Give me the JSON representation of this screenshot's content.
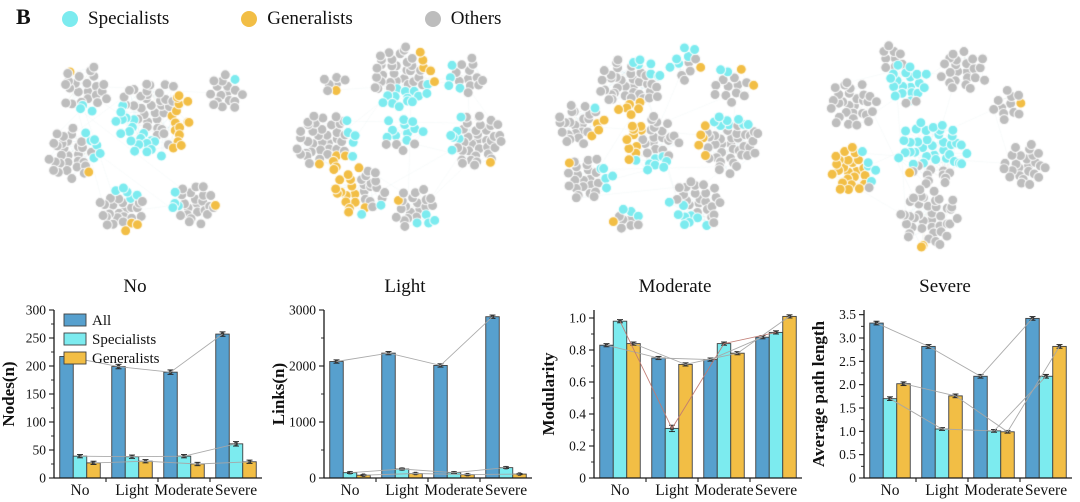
{
  "panel_label": "B",
  "colors": {
    "specialist": "#7CEBEF",
    "generalist": "#F2BE45",
    "other": "#BDBDBD",
    "all_bar": "#57A0CE",
    "axis": "#1a1a1a",
    "trend_line": "#a6a6a6",
    "trend_line_red": "#c07a72",
    "node_edge_cool": "rgba(150,205,210,0.14)",
    "node_edge_warm": "rgba(215,180,110,0.13)"
  },
  "legend": [
    {
      "label": "Specialists",
      "color": "#7CEBEF"
    },
    {
      "label": "Generalists",
      "color": "#F2BE45"
    },
    {
      "label": "Others",
      "color": "#BDBDBD"
    }
  ],
  "networks": {
    "panels": [
      {
        "label": "No",
        "seed": 42,
        "clusters": [
          [
            0.31,
            0.24,
            0.105,
            26,
            3,
            0,
            1,
            1,
            -0.3,
            -1
          ],
          [
            0.57,
            0.36,
            0.165,
            68,
            20,
            -0.5,
            0.5,
            15,
            0.95,
            0.1
          ],
          [
            0.84,
            0.25,
            0.082,
            17,
            1,
            0.5,
            -1,
            0,
            0,
            0
          ],
          [
            0.27,
            0.5,
            0.115,
            36,
            6,
            0.9,
            -0.3,
            1,
            0.3,
            0.4
          ],
          [
            0.45,
            0.73,
            0.1,
            30,
            5,
            0.2,
            -1,
            3,
            0.1,
            0.7
          ],
          [
            0.72,
            0.71,
            0.095,
            27,
            4,
            -1,
            -0.2,
            1,
            0.8,
            0.2
          ]
        ]
      },
      {
        "label": "Light",
        "seed": 77,
        "clusters": [
          [
            0.49,
            0.19,
            0.135,
            50,
            14,
            0.1,
            1,
            5,
            1,
            -0.3
          ],
          [
            0.23,
            0.21,
            0.05,
            7,
            0,
            0,
            0,
            1,
            0.3,
            1
          ],
          [
            0.73,
            0.19,
            0.085,
            16,
            4,
            -0.7,
            0.2,
            0,
            0,
            0
          ],
          [
            0.2,
            0.45,
            0.13,
            46,
            5,
            1,
            -0.2,
            6,
            0.4,
            1
          ],
          [
            0.49,
            0.42,
            0.085,
            15,
            11,
            0,
            -1,
            0,
            0,
            0
          ],
          [
            0.77,
            0.45,
            0.12,
            42,
            6,
            -1,
            -0.2,
            1,
            0.3,
            1
          ],
          [
            0.33,
            0.66,
            0.11,
            32,
            2,
            0.3,
            1,
            15,
            -0.6,
            0.1
          ],
          [
            0.54,
            0.73,
            0.095,
            24,
            4,
            0.2,
            0.3,
            1,
            -0.8,
            -0.5
          ]
        ]
      },
      {
        "label": "Moderate",
        "seed": 113,
        "clusters": [
          [
            0.33,
            0.22,
            0.13,
            48,
            7,
            0.5,
            -1,
            6,
            0,
            1
          ],
          [
            0.54,
            0.13,
            0.075,
            12,
            6,
            -0.5,
            -0.5,
            1,
            0.8,
            -0.2
          ],
          [
            0.72,
            0.22,
            0.085,
            15,
            2,
            -0.4,
            -0.8,
            2,
            0.3,
            -0.4
          ],
          [
            0.14,
            0.38,
            0.1,
            28,
            1,
            0.5,
            -0.5,
            4,
            0.6,
            0.3
          ],
          [
            0.41,
            0.46,
            0.12,
            38,
            8,
            0.1,
            1,
            10,
            -0.7,
            -0.1
          ],
          [
            0.7,
            0.46,
            0.13,
            48,
            8,
            0,
            -1,
            5,
            -0.9,
            0
          ],
          [
            0.17,
            0.6,
            0.1,
            28,
            5,
            1,
            0,
            1,
            -0.3,
            -0.8
          ],
          [
            0.32,
            0.77,
            0.06,
            10,
            3,
            0.3,
            -0.5,
            1,
            -0.8,
            -0.3
          ],
          [
            0.58,
            0.71,
            0.11,
            32,
            9,
            -0.4,
            0.6,
            0,
            0,
            0
          ]
        ]
      },
      {
        "label": "Severe",
        "seed": 201,
        "clusters": [
          [
            0.3,
            0.11,
            0.055,
            9,
            0,
            0,
            0,
            0,
            0,
            0
          ],
          [
            0.36,
            0.22,
            0.09,
            21,
            19,
            0,
            -0.2,
            0,
            0,
            0
          ],
          [
            0.57,
            0.16,
            0.095,
            23,
            0,
            0,
            0,
            0,
            0,
            0
          ],
          [
            0.15,
            0.3,
            0.105,
            30,
            0,
            0,
            0,
            0,
            0,
            0
          ],
          [
            0.74,
            0.3,
            0.07,
            12,
            0,
            0,
            0,
            1,
            1,
            0
          ],
          [
            0.45,
            0.5,
            0.145,
            48,
            36,
            0,
            -0.2,
            1,
            -0.4,
            0.2
          ],
          [
            0.15,
            0.57,
            0.1,
            30,
            5,
            0.6,
            -0.3,
            24,
            -0.5,
            0
          ],
          [
            0.8,
            0.55,
            0.095,
            25,
            0,
            0,
            0,
            0,
            0,
            0
          ],
          [
            0.44,
            0.77,
            0.13,
            42,
            0,
            0,
            0,
            2,
            -0.1,
            1
          ]
        ]
      }
    ]
  },
  "chart_data": [
    {
      "type": "bar",
      "ylabel": "Nodes(n)",
      "ylim": [
        0,
        300
      ],
      "yticks": [
        0,
        50,
        100,
        150,
        200,
        250,
        300
      ],
      "ytick_labels": [
        "0",
        "50",
        "100",
        "150",
        "200",
        "250",
        "300"
      ],
      "categories": [
        "No",
        "Light",
        "Moderate",
        "Severe"
      ],
      "legend": true,
      "series": [
        {
          "name": "All",
          "color": "#57A0CE",
          "values": [
            217,
            199,
            189,
            257
          ],
          "errors": [
            4,
            4,
            4,
            4
          ]
        },
        {
          "name": "Specialists",
          "color": "#7CEBEF",
          "values": [
            39,
            38,
            39,
            61
          ],
          "errors": [
            3,
            3,
            3,
            4
          ]
        },
        {
          "name": "Generalists",
          "color": "#F2BE45",
          "values": [
            27,
            30,
            25,
            29
          ],
          "errors": [
            3,
            3,
            3,
            3
          ]
        }
      ],
      "line_colors": [
        "#a6a6a6",
        "#a6a6a6",
        "#a6a6a6"
      ]
    },
    {
      "type": "bar",
      "ylabel": "Links(n)",
      "ylim": [
        0,
        3000
      ],
      "yticks": [
        0,
        1000,
        2000,
        3000
      ],
      "ytick_labels": [
        "0",
        "1000",
        "2000",
        "3000"
      ],
      "categories": [
        "No",
        "Light",
        "Moderate",
        "Severe"
      ],
      "legend": false,
      "series": [
        {
          "name": "All",
          "color": "#57A0CE",
          "values": [
            2080,
            2230,
            2010,
            2880
          ],
          "errors": [
            30,
            30,
            30,
            30
          ]
        },
        {
          "name": "Specialists",
          "color": "#7CEBEF",
          "values": [
            95,
            160,
            95,
            185
          ],
          "errors": [
            15,
            15,
            15,
            15
          ]
        },
        {
          "name": "Generalists",
          "color": "#F2BE45",
          "values": [
            50,
            80,
            60,
            70
          ],
          "errors": [
            10,
            10,
            10,
            10
          ]
        }
      ],
      "line_colors": [
        "#a6a6a6",
        "#a6a6a6",
        "#a6a6a6"
      ]
    },
    {
      "type": "bar",
      "ylabel": "Modularity",
      "ylim": [
        0,
        1.05
      ],
      "yticks": [
        0,
        0.2,
        0.4,
        0.6,
        0.8,
        1.0
      ],
      "ytick_labels": [
        "0",
        "0.2",
        "0.4",
        "0.6",
        "0.8",
        "1.0"
      ],
      "categories": [
        "No",
        "Light",
        "Moderate",
        "Severe"
      ],
      "legend": false,
      "series": [
        {
          "name": "All",
          "color": "#57A0CE",
          "values": [
            0.83,
            0.75,
            0.74,
            0.88
          ],
          "errors": [
            0.01,
            0.01,
            0.01,
            0.01
          ]
        },
        {
          "name": "Specialists",
          "color": "#7CEBEF",
          "values": [
            0.98,
            0.31,
            0.84,
            0.91
          ],
          "errors": [
            0.01,
            0.02,
            0.01,
            0.01
          ]
        },
        {
          "name": "Generalists",
          "color": "#F2BE45",
          "values": [
            0.84,
            0.71,
            0.78,
            1.01
          ],
          "errors": [
            0.01,
            0.01,
            0.01,
            0.01
          ]
        }
      ],
      "line_colors": [
        "#a6a6a6",
        "#c07a72",
        "#a6a6a6"
      ]
    },
    {
      "type": "bar",
      "ylabel": "Average path length",
      "ylim": [
        0,
        3.6
      ],
      "yticks": [
        0,
        0.5,
        1.0,
        1.5,
        2.0,
        2.5,
        3.0,
        3.5
      ],
      "ytick_labels": [
        "0",
        "0.5",
        "1.0",
        "1.5",
        "2.0",
        "2.5",
        "3.0",
        "3.5"
      ],
      "categories": [
        "No",
        "Light",
        "Moderate",
        "Severe"
      ],
      "legend": false,
      "series": [
        {
          "name": "All",
          "color": "#57A0CE",
          "values": [
            3.32,
            2.82,
            2.18,
            3.42
          ],
          "errors": [
            0.04,
            0.04,
            0.04,
            0.04
          ]
        },
        {
          "name": "Specialists",
          "color": "#7CEBEF",
          "values": [
            1.7,
            1.05,
            1.01,
            2.18
          ],
          "errors": [
            0.04,
            0.03,
            0.03,
            0.04
          ]
        },
        {
          "name": "Generalists",
          "color": "#F2BE45",
          "values": [
            2.02,
            1.76,
            0.99,
            2.82
          ],
          "errors": [
            0.04,
            0.04,
            0.03,
            0.04
          ]
        }
      ],
      "line_colors": [
        "#a6a6a6",
        "#a6a6a6",
        "#a6a6a6"
      ]
    }
  ]
}
